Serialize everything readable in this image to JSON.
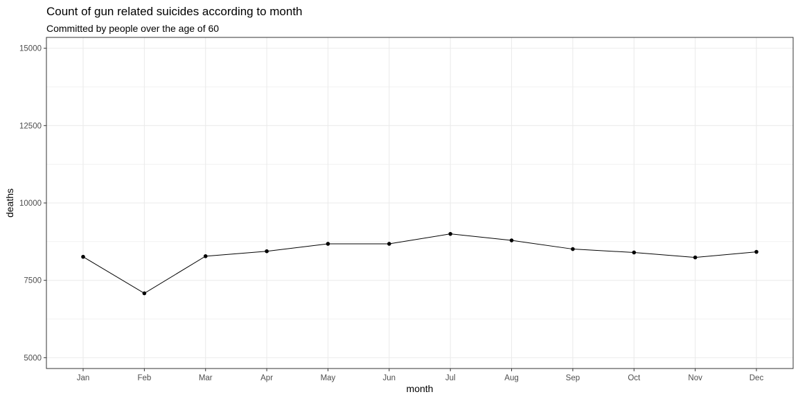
{
  "chart_data": {
    "type": "line",
    "title": "Count of gun related suicides according to month",
    "subtitle": "Committed by people over the age of 60",
    "xlabel": "month",
    "ylabel": "deaths",
    "categories": [
      "Jan",
      "Feb",
      "Mar",
      "Apr",
      "May",
      "Jun",
      "Jul",
      "Aug",
      "Sep",
      "Oct",
      "Nov",
      "Dec"
    ],
    "values": [
      8260,
      7080,
      8280,
      8440,
      8680,
      8680,
      9000,
      8790,
      8510,
      8400,
      8240,
      8420
    ],
    "ylim": [
      4650,
      15350
    ],
    "yticks": [
      5000,
      7500,
      10000,
      12500,
      15000
    ],
    "ytick_labels": [
      "5000",
      "7500",
      "10000",
      "12500",
      "15000"
    ],
    "grid": true,
    "legend": "none",
    "colors": {
      "line": "#000000",
      "point": "#000000",
      "grid": "#ebebeb",
      "panel_border": "#333333",
      "tick_label": "#4d4d4d"
    }
  }
}
